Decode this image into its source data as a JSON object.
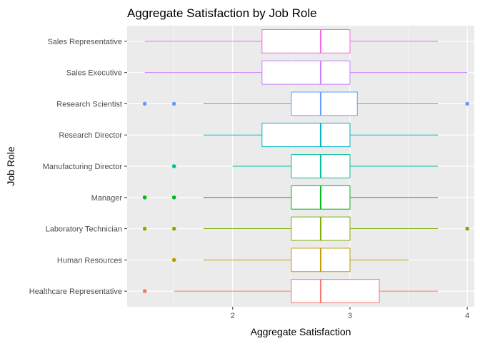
{
  "chart_data": {
    "type": "boxplot",
    "orientation": "horizontal",
    "title": "Aggregate Satisfaction by Job Role",
    "xlabel": "Aggregate Satisfaction",
    "ylabel": "Job Role",
    "xlim": [
      1.1,
      4.06
    ],
    "x_ticks": [
      2,
      3,
      4
    ],
    "grid": true,
    "legend": "none",
    "series": [
      {
        "name": "Healthcare Representative",
        "color": "#F8766D",
        "whisker_low": 1.5,
        "q1": 2.5,
        "median": 2.75,
        "q3": 3.25,
        "whisker_high": 3.75,
        "outliers": [
          1.25
        ]
      },
      {
        "name": "Human Resources",
        "color": "#C49A00",
        "whisker_low": 1.75,
        "q1": 2.5,
        "median": 2.75,
        "q3": 3.0,
        "whisker_high": 3.5,
        "outliers": [
          1.5
        ]
      },
      {
        "name": "Laboratory Technician",
        "color": "#7CAE00",
        "whisker_low": 1.75,
        "q1": 2.5,
        "median": 2.75,
        "q3": 3.0,
        "whisker_high": 3.75,
        "outliers": [
          1.25,
          1.5,
          4.0
        ]
      },
      {
        "name": "Manager",
        "color": "#00B81F",
        "whisker_low": 1.75,
        "q1": 2.5,
        "median": 2.75,
        "q3": 3.0,
        "whisker_high": 3.75,
        "outliers": [
          1.25,
          1.5
        ]
      },
      {
        "name": "Manufacturing Director",
        "color": "#00BE9A",
        "whisker_low": 2.0,
        "q1": 2.5,
        "median": 2.75,
        "q3": 3.0,
        "whisker_high": 3.75,
        "outliers": [
          1.5
        ]
      },
      {
        "name": "Research Director",
        "color": "#00B4C5",
        "whisker_low": 1.75,
        "q1": 2.25,
        "median": 2.75,
        "q3": 3.0,
        "whisker_high": 3.75,
        "outliers": []
      },
      {
        "name": "Research Scientist",
        "color": "#619CFF",
        "whisker_low": 1.75,
        "q1": 2.5,
        "median": 2.75,
        "q3": 3.0625,
        "whisker_high": 3.75,
        "outliers": [
          1.25,
          1.5,
          4.0
        ]
      },
      {
        "name": "Sales Executive",
        "color": "#C77CFF",
        "whisker_low": 1.25,
        "q1": 2.25,
        "median": 2.75,
        "q3": 3.0,
        "whisker_high": 4.0,
        "outliers": []
      },
      {
        "name": "Sales Representative",
        "color": "#F564E3",
        "whisker_low": 1.25,
        "q1": 2.25,
        "median": 2.75,
        "q3": 3.0,
        "whisker_high": 3.75,
        "outliers": []
      }
    ]
  }
}
